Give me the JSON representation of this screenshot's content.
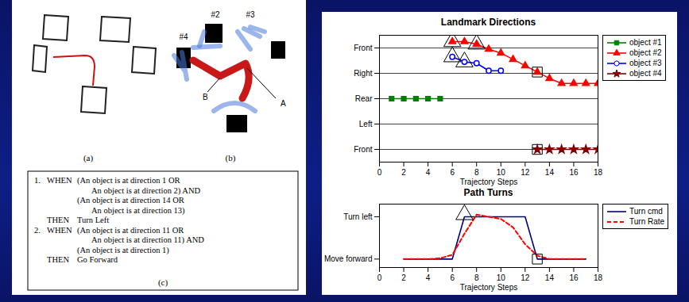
{
  "figures": {
    "a": {
      "label": "(a)"
    },
    "b": {
      "label": "(b)",
      "landmarks": [
        "#2",
        "#3",
        "#4"
      ],
      "points": [
        "A",
        "B"
      ]
    },
    "c": {
      "label": "(c)",
      "rules": [
        {
          "number": "1.",
          "keyword": "WHEN",
          "lines": [
            "(An object is at direction 1 OR",
            "An object is at direction 2) AND",
            "(An object is at direction 14 OR",
            "An object is at direction 13)"
          ],
          "then_keyword": "THEN",
          "action": "Turn Left"
        },
        {
          "number": "2.",
          "keyword": "WHEN",
          "lines": [
            "(An object is at direction 11 OR",
            "An object is at direction 11) AND",
            "(An object is at direction 1)"
          ],
          "then_keyword": "THEN",
          "action": "Go Forward"
        }
      ]
    }
  },
  "chart_data": [
    {
      "type": "line",
      "title": "Landmark Directions",
      "xlabel": "Trajectory Steps",
      "x": [
        1,
        2,
        3,
        4,
        5,
        6,
        7,
        8,
        9,
        10,
        11,
        12,
        13,
        14,
        15,
        16,
        17,
        18
      ],
      "xlim": [
        0,
        18
      ],
      "xticks": [
        0,
        2,
        4,
        6,
        8,
        10,
        12,
        14,
        16,
        18
      ],
      "ylim": [
        -1,
        9
      ],
      "yticks": [
        {
          "value": 0,
          "label": "Front"
        },
        {
          "value": 2,
          "label": "Left"
        },
        {
          "value": 4,
          "label": "Rear"
        },
        {
          "value": 6,
          "label": "Right"
        },
        {
          "value": 8,
          "label": "Front"
        }
      ],
      "grid": true,
      "legend": "right",
      "series": [
        {
          "name": "object #1",
          "color": "#008000",
          "marker": "square",
          "line_style": "solid",
          "values": [
            4,
            4,
            4,
            4,
            4,
            null,
            null,
            null,
            null,
            null,
            null,
            null,
            null,
            null,
            null,
            null,
            null,
            null
          ]
        },
        {
          "name": "object #2",
          "color": "#ff0000",
          "marker": "triangle",
          "line_style": "solid",
          "values": [
            null,
            null,
            null,
            null,
            null,
            8.5,
            8.5,
            8.3,
            7.9,
            7.6,
            7.1,
            6.6,
            6.1,
            5.6,
            5.2,
            5.2,
            5.2,
            5.2
          ]
        },
        {
          "name": "object #3",
          "color": "#0000ff",
          "marker": "circle",
          "line_style": "solid",
          "values": [
            null,
            null,
            null,
            null,
            null,
            7.3,
            6.9,
            6.8,
            6.2,
            6.2,
            null,
            null,
            null,
            null,
            null,
            null,
            null,
            null
          ]
        },
        {
          "name": "object #4",
          "color": "#800000",
          "marker": "star",
          "line_style": "solid",
          "values": [
            null,
            null,
            null,
            null,
            null,
            null,
            null,
            null,
            null,
            null,
            null,
            null,
            0,
            0,
            0,
            0,
            0,
            0
          ]
        }
      ],
      "annotations": {
        "triangles": {
          "x": [
            6,
            6,
            7,
            8
          ],
          "y": [
            8.5,
            7.3,
            6.9,
            8.3
          ]
        },
        "boxes": {
          "x": [
            13,
            13
          ],
          "y": [
            6.1,
            0
          ]
        }
      }
    },
    {
      "type": "line",
      "title": "Path Turns",
      "xlabel": "Trajectory Steps",
      "x": [
        2,
        3,
        4,
        5,
        6,
        7,
        8,
        9,
        10,
        11,
        12,
        13,
        14,
        15,
        16,
        17
      ],
      "xlim": [
        0,
        18
      ],
      "xticks": [
        0,
        2,
        4,
        6,
        8,
        10,
        12,
        14,
        16,
        18
      ],
      "ylim": [
        -0.2,
        1.3
      ],
      "yticks": [
        {
          "value": 0,
          "label": "Move forward"
        },
        {
          "value": 1,
          "label": "Turn left"
        }
      ],
      "grid": false,
      "legend": "right",
      "series": [
        {
          "name": "Turn cmd",
          "color": "#000080",
          "line_style": "solid",
          "values": [
            0,
            0,
            0,
            0,
            0,
            1,
            1,
            1,
            1,
            1,
            1,
            0,
            0,
            0,
            0,
            0
          ]
        },
        {
          "name": "Turn Rate",
          "color": "#ff0000",
          "line_style": "dashed",
          "values": [
            0,
            0,
            0,
            0.02,
            0.1,
            0.6,
            1.05,
            1.0,
            0.95,
            0.75,
            0.35,
            0.08,
            0,
            0,
            0,
            0
          ]
        }
      ],
      "annotations": {
        "triangles": {
          "x": [
            7
          ],
          "y": [
            1.05
          ]
        },
        "boxes": {
          "x": [
            13
          ],
          "y": [
            0
          ]
        }
      }
    }
  ]
}
